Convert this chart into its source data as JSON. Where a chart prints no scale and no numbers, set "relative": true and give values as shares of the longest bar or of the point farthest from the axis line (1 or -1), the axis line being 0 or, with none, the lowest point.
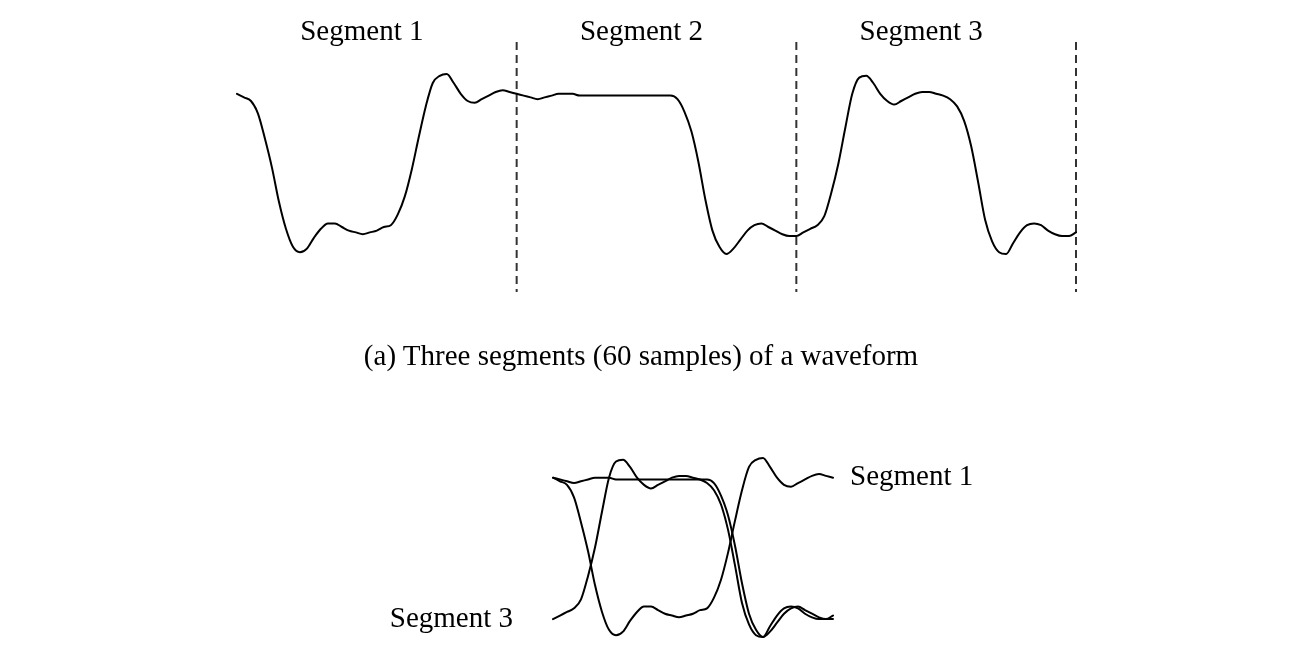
{
  "chart_data": [
    {
      "type": "line",
      "title": "(a) Three segments (60 samples) of a waveform",
      "relative": true,
      "color": "#000000",
      "grid": "x",
      "categories": [
        null,
        null,
        null,
        null,
        null,
        null,
        null,
        null,
        null,
        null,
        null,
        null,
        null,
        null,
        null,
        null,
        null,
        null,
        null,
        null,
        null,
        null,
        null,
        null,
        null,
        null,
        null,
        null,
        null,
        null,
        null,
        null,
        null,
        null,
        null,
        null,
        null,
        null,
        null,
        null,
        null,
        null,
        null,
        null,
        null,
        null,
        null,
        null,
        null,
        null,
        null,
        null,
        null,
        null,
        null,
        null,
        null,
        null,
        null,
        null,
        null,
        null,
        null,
        null,
        null,
        null,
        null,
        null,
        null,
        null,
        null,
        null,
        null,
        null,
        null,
        null,
        null,
        null,
        null,
        null,
        null,
        null,
        null,
        null,
        null,
        null,
        null,
        null,
        null,
        null,
        null,
        null,
        null,
        null,
        null,
        null,
        null,
        null,
        null,
        null,
        null,
        null,
        null,
        null,
        null,
        null,
        null,
        null,
        null,
        null,
        null,
        null,
        null,
        null,
        null,
        null,
        null,
        null,
        null,
        null,
        null
      ],
      "values": [
        0.89,
        0.87,
        0.85,
        0.78,
        0.64,
        0.48,
        0.29,
        0.14,
        0.04,
        0.01,
        0.03,
        0.09,
        0.14,
        0.17,
        0.17,
        0.15,
        0.13,
        0.12,
        0.11,
        0.12,
        0.13,
        0.15,
        0.16,
        0.22,
        0.32,
        0.47,
        0.65,
        0.82,
        0.95,
        0.99,
        1,
        0.95,
        0.89,
        0.85,
        0.84,
        0.86,
        0.88,
        0.9,
        0.91,
        0.9,
        0.89,
        0.88,
        0.87,
        0.86,
        0.87,
        0.88,
        0.89,
        0.89,
        0.89,
        0.88,
        0.88,
        0.88,
        0.88,
        0.88,
        0.88,
        0.88,
        0.88,
        0.88,
        0.88,
        0.88,
        0.88,
        0.88,
        0.88,
        0.86,
        0.79,
        0.68,
        0.51,
        0.3,
        0.13,
        0.04,
        0,
        0.03,
        0.08,
        0.13,
        0.16,
        0.17,
        0.15,
        0.13,
        0.11,
        0.1,
        0.1,
        0.12,
        0.14,
        0.16,
        0.21,
        0.34,
        0.5,
        0.7,
        0.89,
        0.98,
        0.99,
        0.95,
        0.89,
        0.85,
        0.83,
        0.85,
        0.87,
        0.89,
        0.9,
        0.9,
        0.89,
        0.88,
        0.86,
        0.82,
        0.74,
        0.6,
        0.4,
        0.19,
        0.07,
        0.01,
        0,
        0.06,
        0.12,
        0.16,
        0.17,
        0.16,
        0.13,
        0.11,
        0.1,
        0.1,
        0.12
      ],
      "annotations": [
        "Segment 1",
        "Segment 2",
        "Segment 3"
      ]
    },
    {
      "type": "line",
      "relative": true,
      "categories": [
        null,
        null,
        null,
        null,
        null,
        null,
        null,
        null,
        null,
        null,
        null,
        null,
        null,
        null,
        null,
        null,
        null,
        null,
        null,
        null,
        null,
        null,
        null,
        null,
        null,
        null,
        null,
        null,
        null,
        null,
        null,
        null,
        null,
        null,
        null,
        null,
        null,
        null,
        null,
        null,
        null
      ],
      "series": [
        {
          "name": "Segment 1",
          "color": "#000000",
          "values": [
            0.89,
            0.87,
            0.85,
            0.78,
            0.64,
            0.48,
            0.29,
            0.14,
            0.04,
            0.01,
            0.03,
            0.09,
            0.14,
            0.17,
            0.17,
            0.15,
            0.13,
            0.12,
            0.11,
            0.12,
            0.13,
            0.15,
            0.16,
            0.22,
            0.32,
            0.47,
            0.65,
            0.82,
            0.95,
            0.99,
            1,
            0.95,
            0.89,
            0.85,
            0.84,
            0.86,
            0.88,
            0.9,
            0.91,
            0.9,
            0.89
          ]
        },
        {
          "color": "#000000",
          "values": [
            0.89,
            0.88,
            0.87,
            0.86,
            0.87,
            0.88,
            0.89,
            0.89,
            0.89,
            0.88,
            0.88,
            0.88,
            0.88,
            0.88,
            0.88,
            0.88,
            0.88,
            0.88,
            0.88,
            0.88,
            0.88,
            0.88,
            0.88,
            0.86,
            0.79,
            0.68,
            0.51,
            0.3,
            0.13,
            0.04,
            0,
            0.03,
            0.08,
            0.13,
            0.16,
            0.17,
            0.15,
            0.13,
            0.11,
            0.1,
            0.1
          ]
        },
        {
          "name": "Segment 3",
          "color": "#000000",
          "values": [
            0.1,
            0.12,
            0.14,
            0.16,
            0.21,
            0.34,
            0.5,
            0.7,
            0.89,
            0.98,
            0.99,
            0.95,
            0.89,
            0.85,
            0.83,
            0.85,
            0.87,
            0.89,
            0.9,
            0.9,
            0.89,
            0.88,
            0.86,
            0.82,
            0.74,
            0.6,
            0.4,
            0.19,
            0.07,
            0.01,
            0,
            0.06,
            0.12,
            0.16,
            0.17,
            0.16,
            0.13,
            0.11,
            0.1,
            0.1,
            0.12
          ]
        }
      ]
    }
  ]
}
